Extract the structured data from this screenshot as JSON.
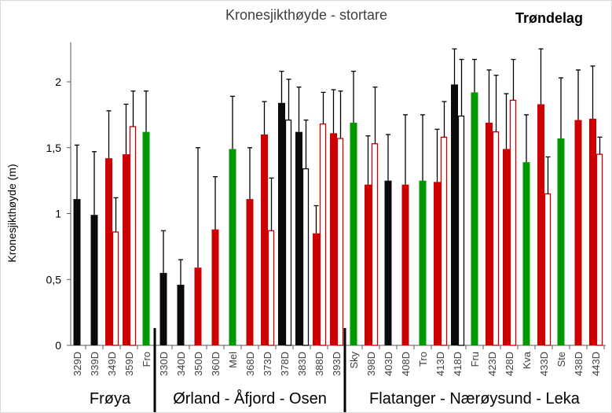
{
  "chart_data": {
    "type": "bar",
    "title": "Kronesjikthøyde - stortare",
    "region_label": "Trøndelag",
    "ylabel": "Kronesjikthøyde (m)",
    "xlabel": "",
    "ylim": [
      0,
      2.3
    ],
    "yticks": [
      0,
      0.5,
      1,
      1.5,
      2
    ],
    "ytick_labels": [
      "0",
      "0,5",
      "1",
      "1,5",
      "2"
    ],
    "grid": false,
    "colors": {
      "black": "#0a0a0a",
      "red": "#cc0000",
      "green": "#009900"
    },
    "groups": [
      {
        "label": "Frøya",
        "count": 5
      },
      {
        "label": "Ørland - Åfjord - Osen",
        "count": 11
      },
      {
        "label": "Flatanger - Nærøysund - Leka",
        "count": 15
      }
    ],
    "categories": [
      {
        "label": "329D",
        "color": "black",
        "value": 1.11,
        "err": 1.52
      },
      {
        "label": "339D",
        "color": "black",
        "value": 0.99,
        "err": 1.47
      },
      {
        "label": "349D",
        "color": "red",
        "value": 1.42,
        "err": 1.78,
        "hollow": 0.86,
        "hollow_err": 1.12
      },
      {
        "label": "359D",
        "color": "red",
        "value": 1.45,
        "err": 1.83,
        "hollow": 1.66,
        "hollow_err": 1.93
      },
      {
        "label": "Fro",
        "color": "green",
        "value": 1.62,
        "err": 1.93
      },
      {
        "label": "330D",
        "color": "black",
        "value": 0.55,
        "err": 0.87
      },
      {
        "label": "340D",
        "color": "black",
        "value": 0.46,
        "err": 0.65
      },
      {
        "label": "350D",
        "color": "red",
        "value": 0.59,
        "err": 1.5
      },
      {
        "label": "360D",
        "color": "red",
        "value": 0.88,
        "err": 1.28
      },
      {
        "label": "Mel",
        "color": "green",
        "value": 1.49,
        "err": 1.89
      },
      {
        "label": "368D",
        "color": "red",
        "value": 1.11,
        "err": 1.5
      },
      {
        "label": "373D",
        "color": "red",
        "value": 1.6,
        "err": 1.85,
        "hollow": 0.87,
        "hollow_err": 1.27
      },
      {
        "label": "378D",
        "color": "black",
        "value": 1.84,
        "err": 2.08,
        "hollow": 1.71,
        "hollow_err": 2.02
      },
      {
        "label": "383D",
        "color": "black",
        "value": 1.62,
        "err": 1.96,
        "hollow": 1.34,
        "hollow_err": 1.71
      },
      {
        "label": "388D",
        "color": "red",
        "value": 0.85,
        "err": 1.06,
        "hollow": 1.68,
        "hollow_err": 1.92
      },
      {
        "label": "393D",
        "color": "red",
        "value": 1.61,
        "err": 1.94,
        "hollow": 1.57,
        "hollow_err": 1.93
      },
      {
        "label": "Sky",
        "color": "green",
        "value": 1.69,
        "err": 2.08
      },
      {
        "label": "398D",
        "color": "red",
        "value": 1.22,
        "err": 1.59,
        "hollow": 1.53,
        "hollow_err": 1.96
      },
      {
        "label": "403D",
        "color": "black",
        "value": 1.25,
        "err": 1.6
      },
      {
        "label": "408D",
        "color": "red",
        "value": 1.22,
        "err": 1.75
      },
      {
        "label": "Tro",
        "color": "green",
        "value": 1.25,
        "err": 1.75
      },
      {
        "label": "413D",
        "color": "red",
        "value": 1.24,
        "err": 1.64,
        "hollow": 1.58,
        "hollow_err": 1.85
      },
      {
        "label": "418D",
        "color": "black",
        "value": 1.98,
        "err": 2.25,
        "hollow": 1.74,
        "hollow_err": 2.17
      },
      {
        "label": "Fru",
        "color": "green",
        "value": 1.92,
        "err": 2.17
      },
      {
        "label": "423D",
        "color": "red",
        "value": 1.69,
        "err": 2.09,
        "hollow": 1.62,
        "hollow_err": 2.05
      },
      {
        "label": "428D",
        "color": "red",
        "value": 1.49,
        "err": 1.91,
        "hollow": 1.86,
        "hollow_err": 2.17
      },
      {
        "label": "Kva",
        "color": "green",
        "value": 1.39,
        "err": 1.75
      },
      {
        "label": "433D",
        "color": "red",
        "value": 1.83,
        "err": 2.25,
        "hollow": 1.15,
        "hollow_err": 1.43
      },
      {
        "label": "Ste",
        "color": "green",
        "value": 1.57,
        "err": 2.03
      },
      {
        "label": "438D",
        "color": "red",
        "value": 1.71,
        "err": 2.09
      },
      {
        "label": "443D",
        "color": "red",
        "value": 1.72,
        "err": 2.12,
        "hollow": 1.45,
        "hollow_err": 1.58
      }
    ]
  }
}
